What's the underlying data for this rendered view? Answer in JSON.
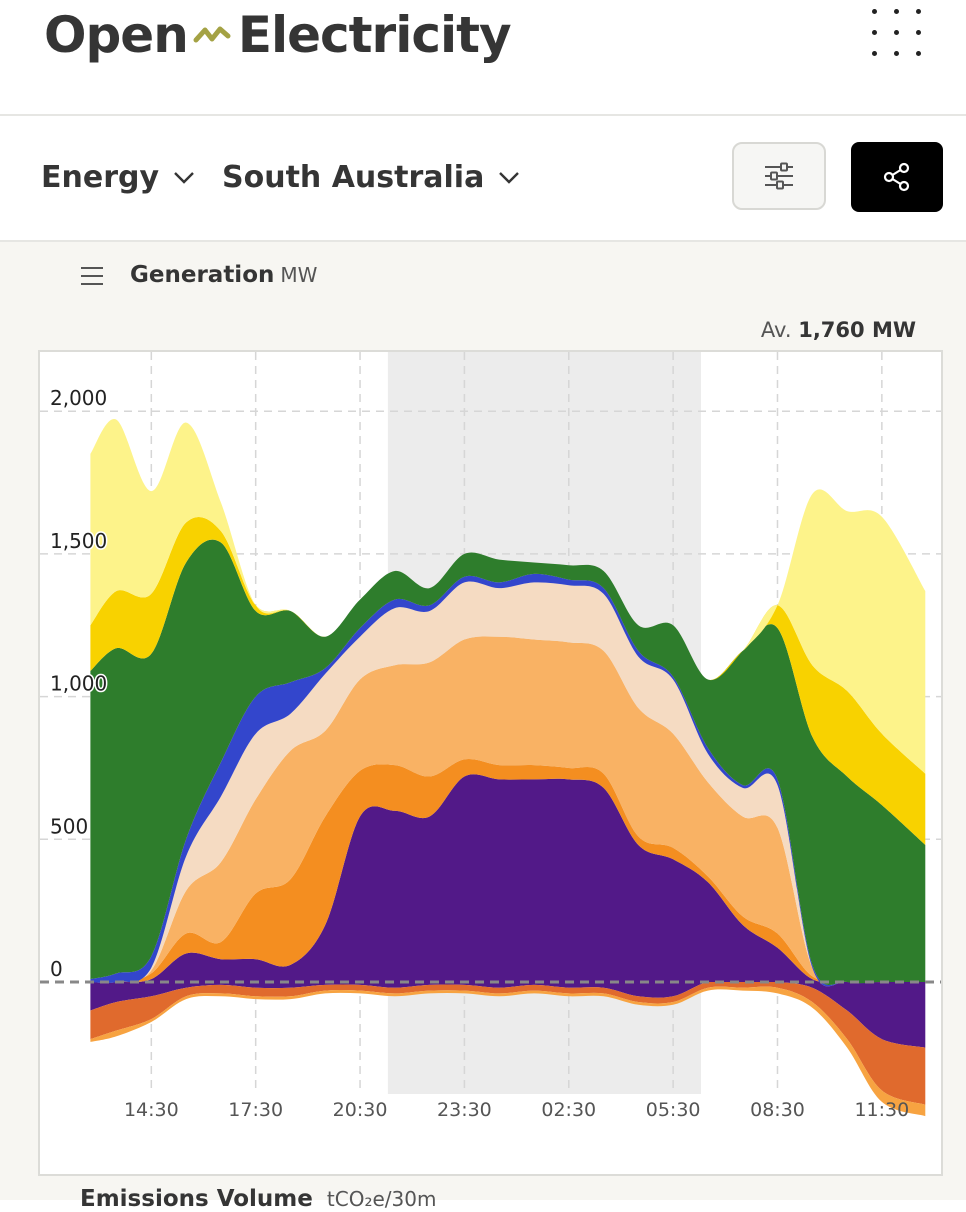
{
  "app": {
    "logo_left": "Open",
    "logo_right": "Electricity"
  },
  "toolbar": {
    "metric": "Energy",
    "region": "South Australia"
  },
  "panel": {
    "title": "Generation",
    "unit": "MW",
    "avg_label": "Av.",
    "avg_value": "1,760 MW"
  },
  "next_section": {
    "title": "Emissions Volume",
    "unit": "tCO₂e/30m"
  },
  "colors": {
    "battery_charging": "#f7a341",
    "pumps": "#e06a2d",
    "wind": "#2e7d2c",
    "solar_utility": "#f8d200",
    "solar_rooftop": "#fdf38a",
    "battery_discharging": "#3346cc",
    "gas_ccgt": "#f48e20",
    "gas_ocgt": "#f9b264",
    "gas_steam": "#f5dbc2",
    "imports": "#521988"
  },
  "chart_data": {
    "type": "area",
    "ylim": [
      -400,
      2200
    ],
    "yticks": [
      0,
      500,
      1000,
      1500,
      2000
    ],
    "ytick_labels": [
      "0",
      "500",
      "1,000",
      "1,500",
      "2,000"
    ],
    "xtick_labels": [
      "14:30",
      "17:30",
      "20:30",
      "23:30",
      "02:30",
      "05:30",
      "08:30",
      "11:30"
    ],
    "xtick_hours": [
      14.5,
      17.5,
      20.5,
      23.5,
      26.5,
      29.5,
      32.5,
      35.5
    ],
    "x_hours": [
      12.75,
      13.5,
      14.5,
      15.5,
      16.5,
      17.5,
      18.5,
      19.5,
      20.5,
      21.5,
      22.5,
      23.5,
      24.5,
      25.5,
      26.5,
      27.5,
      28.5,
      29.5,
      30.5,
      31.5,
      32.5,
      33.5,
      34.5,
      35.5,
      36.75
    ],
    "night_shade_hours": [
      21.3,
      30.3
    ],
    "negative_series": [
      {
        "color_key": "imports",
        "values": [
          -100,
          -70,
          -50,
          -20,
          -10,
          -20,
          -20,
          -10,
          -10,
          -20,
          -10,
          -10,
          -20,
          -10,
          -20,
          -20,
          -50,
          -50,
          0,
          0,
          0,
          -20,
          -100,
          -200,
          -230
        ]
      },
      {
        "color_key": "pumps",
        "values": [
          -100,
          -100,
          -80,
          -30,
          -30,
          -30,
          -30,
          -20,
          -20,
          -20,
          -20,
          -20,
          -20,
          -20,
          -20,
          -20,
          -20,
          -20,
          -20,
          -20,
          -20,
          -50,
          -100,
          -180,
          -200
        ]
      },
      {
        "color_key": "battery_charging",
        "values": [
          -10,
          -20,
          -10,
          -10,
          -10,
          -10,
          -10,
          -10,
          -10,
          -10,
          -10,
          -10,
          -10,
          -10,
          -10,
          -10,
          -10,
          -10,
          -10,
          -10,
          -20,
          -20,
          -30,
          -40,
          -40
        ]
      }
    ],
    "positive_series": [
      {
        "color_key": "imports",
        "values": [
          0,
          0,
          10,
          100,
          80,
          80,
          60,
          200,
          580,
          600,
          580,
          720,
          710,
          710,
          710,
          680,
          480,
          430,
          350,
          200,
          120,
          10,
          0,
          0,
          0
        ]
      },
      {
        "color_key": "gas_ccgt",
        "values": [
          0,
          0,
          20,
          70,
          60,
          230,
          300,
          380,
          160,
          160,
          140,
          60,
          50,
          50,
          40,
          50,
          30,
          40,
          20,
          30,
          50,
          10,
          0,
          0,
          0
        ]
      },
      {
        "color_key": "gas_ocgt",
        "values": [
          0,
          0,
          10,
          150,
          280,
          330,
          450,
          300,
          320,
          350,
          400,
          420,
          450,
          440,
          440,
          430,
          450,
          400,
          330,
          350,
          370,
          30,
          0,
          0,
          0
        ]
      },
      {
        "color_key": "gas_steam",
        "values": [
          0,
          0,
          10,
          120,
          230,
          230,
          130,
          200,
          150,
          200,
          180,
          200,
          170,
          200,
          200,
          200,
          180,
          190,
          100,
          100,
          150,
          0,
          0,
          0,
          0
        ]
      },
      {
        "color_key": "battery_discharging",
        "values": [
          10,
          30,
          40,
          60,
          120,
          130,
          110,
          20,
          30,
          30,
          20,
          20,
          20,
          30,
          20,
          20,
          20,
          10,
          20,
          10,
          20,
          10,
          0,
          0,
          0
        ]
      },
      {
        "color_key": "wind",
        "values": [
          1080,
          1140,
          1060,
          970,
          770,
          300,
          250,
          110,
          100,
          100,
          60,
          80,
          80,
          40,
          50,
          60,
          90,
          180,
          240,
          470,
          530,
          800,
          720,
          620,
          480
        ]
      },
      {
        "color_key": "solar_utility",
        "values": [
          160,
          200,
          210,
          140,
          40,
          20,
          0,
          0,
          0,
          0,
          0,
          0,
          0,
          0,
          0,
          0,
          0,
          0,
          0,
          0,
          80,
          250,
          300,
          250,
          250
        ]
      },
      {
        "color_key": "solar_rooftop",
        "values": [
          600,
          600,
          360,
          350,
          100,
          0,
          0,
          0,
          0,
          0,
          0,
          0,
          0,
          0,
          0,
          0,
          0,
          0,
          0,
          0,
          0,
          600,
          630,
          760,
          640
        ]
      }
    ]
  }
}
